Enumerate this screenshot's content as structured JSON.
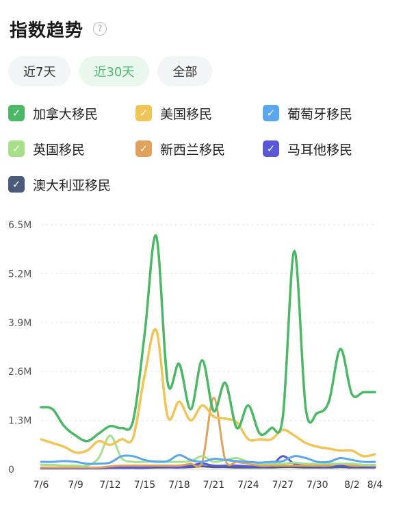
{
  "header": {
    "title": "指数趋势",
    "help_glyph": "?"
  },
  "tabs": [
    {
      "label": "近7天",
      "active": false
    },
    {
      "label": "近30天",
      "active": true
    },
    {
      "label": "全部",
      "active": false
    }
  ],
  "colors": {
    "accent": "#4bb86a",
    "tab_bg": "#f3f4f6",
    "tab_active_bg": "#e9f7ed"
  },
  "chart_data": {
    "type": "line",
    "x": [
      "7/6",
      "7/7",
      "7/8",
      "7/9",
      "7/10",
      "7/11",
      "7/12",
      "7/13",
      "7/14",
      "7/15",
      "7/16",
      "7/17",
      "7/18",
      "7/19",
      "7/20",
      "7/21",
      "7/22",
      "7/23",
      "7/24",
      "7/25",
      "7/26",
      "7/27",
      "7/28",
      "7/29",
      "7/30",
      "7/31",
      "8/1",
      "8/2",
      "8/3",
      "8/4"
    ],
    "x_tick_labels": [
      "7/6",
      "7/9",
      "7/12",
      "7/15",
      "7/18",
      "7/21",
      "7/24",
      "7/27",
      "7/30",
      "8/2",
      "8/4"
    ],
    "y_ticks": [
      "0",
      "1.3M",
      "2.6M",
      "3.9M",
      "5.2M",
      "6.5M"
    ],
    "ylim": [
      0,
      6.5
    ],
    "y_unit": "M",
    "grid": true,
    "legend_position": "top",
    "series": [
      {
        "name": "加拿大移民",
        "color": "#4bb865",
        "checked": true,
        "values": [
          1.65,
          1.6,
          1.15,
          0.9,
          0.75,
          0.95,
          1.15,
          1.1,
          1.3,
          3.6,
          6.2,
          2.3,
          2.8,
          1.6,
          2.9,
          1.55,
          2.3,
          1.1,
          1.7,
          0.95,
          1.1,
          1.4,
          5.8,
          1.6,
          1.5,
          1.8,
          3.2,
          2.0,
          2.05,
          2.05
        ]
      },
      {
        "name": "美国移民",
        "color": "#f0c457",
        "checked": true,
        "values": [
          0.8,
          0.7,
          0.6,
          0.45,
          0.5,
          0.75,
          0.65,
          0.8,
          0.85,
          2.5,
          3.7,
          1.4,
          1.8,
          1.3,
          1.7,
          1.4,
          1.35,
          1.25,
          0.8,
          0.8,
          0.8,
          1.05,
          0.9,
          0.7,
          0.6,
          0.55,
          0.5,
          0.5,
          0.35,
          0.4
        ]
      },
      {
        "name": "葡萄牙移民",
        "color": "#5aa7f0",
        "checked": true,
        "values": [
          0.2,
          0.2,
          0.22,
          0.2,
          0.15,
          0.15,
          0.18,
          0.35,
          0.35,
          0.25,
          0.2,
          0.22,
          0.38,
          0.25,
          0.2,
          0.28,
          0.25,
          0.22,
          0.2,
          0.18,
          0.2,
          0.22,
          0.35,
          0.3,
          0.2,
          0.2,
          0.3,
          0.25,
          0.2,
          0.2
        ]
      },
      {
        "name": "英国移民",
        "color": "#a8e08a",
        "checked": true,
        "values": [
          0.12,
          0.12,
          0.1,
          0.1,
          0.1,
          0.3,
          0.9,
          0.3,
          0.2,
          0.2,
          0.22,
          0.2,
          0.2,
          0.22,
          0.35,
          0.2,
          0.25,
          0.3,
          0.2,
          0.15,
          0.15,
          0.15,
          0.18,
          0.15,
          0.15,
          0.15,
          0.15,
          0.15,
          0.12,
          0.12
        ]
      },
      {
        "name": "新西兰移民",
        "color": "#e0a15a",
        "checked": true,
        "values": [
          0.05,
          0.05,
          0.05,
          0.05,
          0.05,
          0.05,
          0.08,
          0.1,
          0.1,
          0.1,
          0.1,
          0.1,
          0.1,
          0.15,
          0.2,
          1.9,
          0.25,
          0.2,
          0.15,
          0.1,
          0.1,
          0.1,
          0.1,
          0.1,
          0.1,
          0.1,
          0.15,
          0.1,
          0.1,
          0.1
        ]
      },
      {
        "name": "马耳他移民",
        "color": "#5b57d9",
        "checked": true,
        "values": [
          0.03,
          0.03,
          0.03,
          0.03,
          0.03,
          0.03,
          0.05,
          0.05,
          0.05,
          0.05,
          0.08,
          0.06,
          0.05,
          0.1,
          0.15,
          0.1,
          0.1,
          0.1,
          0.08,
          0.08,
          0.1,
          0.35,
          0.15,
          0.1,
          0.08,
          0.08,
          0.1,
          0.08,
          0.08,
          0.06
        ]
      },
      {
        "name": "澳大利亚移民",
        "color": "#4a5a7a",
        "checked": true,
        "values": [
          0.03,
          0.03,
          0.03,
          0.03,
          0.03,
          0.03,
          0.04,
          0.04,
          0.04,
          0.04,
          0.05,
          0.05,
          0.05,
          0.06,
          0.08,
          0.06,
          0.06,
          0.05,
          0.05,
          0.05,
          0.05,
          0.06,
          0.06,
          0.05,
          0.05,
          0.05,
          0.06,
          0.05,
          0.05,
          0.05
        ]
      }
    ]
  }
}
